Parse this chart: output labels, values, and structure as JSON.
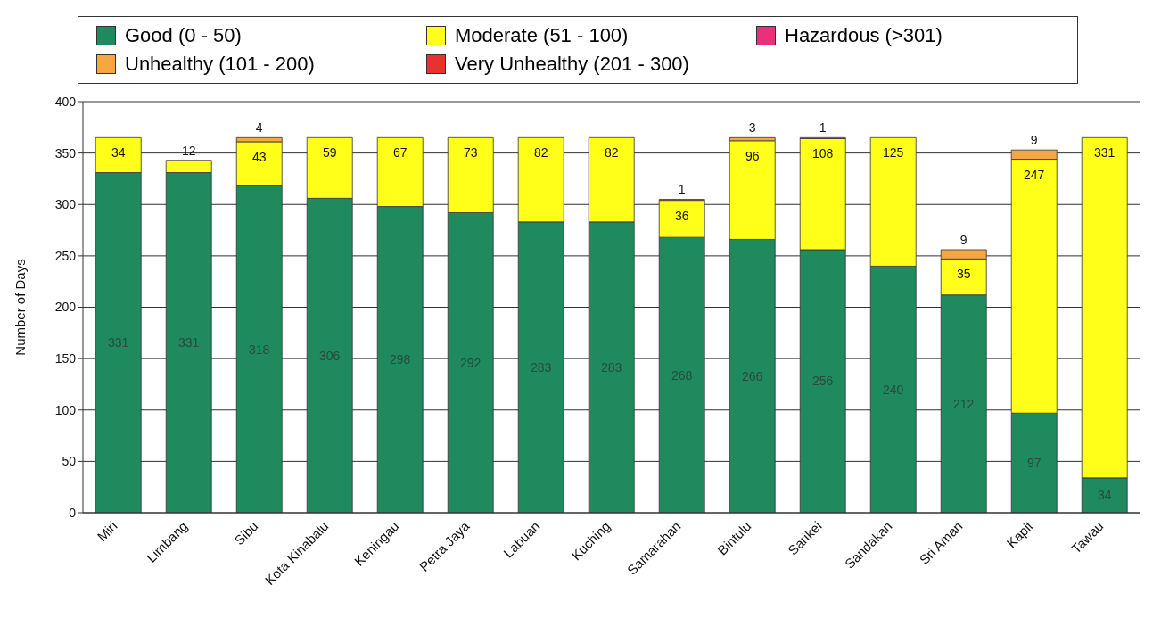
{
  "chart_data": {
    "type": "bar",
    "stacked": true,
    "ylabel": "Number of Days",
    "categories": [
      "Miri",
      "Limbang",
      "Sibu",
      "Kota Kinabalu",
      "Keningau",
      "Petra Jaya",
      "Labuan",
      "Kuching",
      "Samarahan",
      "Bintulu",
      "Sarikei",
      "Sandakan",
      "Sri Aman",
      "Kapit",
      "Tawau"
    ],
    "series": [
      {
        "name": "Good (0 - 50)",
        "color": "#1e8a5e",
        "values": [
          331,
          331,
          318,
          306,
          298,
          292,
          283,
          283,
          268,
          266,
          256,
          240,
          212,
          97,
          34
        ]
      },
      {
        "name": "Moderate (51 - 100)",
        "color": "#ffff1a",
        "values": [
          34,
          12,
          43,
          59,
          67,
          73,
          82,
          82,
          36,
          96,
          108,
          125,
          35,
          247,
          331
        ]
      },
      {
        "name": "Hazardous (>301)",
        "color": "#e8317a",
        "values": [
          null,
          null,
          null,
          null,
          null,
          null,
          null,
          null,
          null,
          null,
          null,
          null,
          null,
          null,
          null
        ]
      },
      {
        "name": "Unhealthy (101 - 200)",
        "color": "#f5a742",
        "values": [
          null,
          null,
          4,
          null,
          null,
          null,
          null,
          null,
          1,
          3,
          1,
          null,
          9,
          9,
          null
        ]
      },
      {
        "name": "Very Unhealthy (201 - 300)",
        "color": "#e8322e",
        "values": [
          null,
          null,
          null,
          null,
          null,
          null,
          null,
          null,
          null,
          null,
          null,
          null,
          null,
          null,
          null
        ]
      }
    ],
    "ylim": [
      0,
      400
    ],
    "yticks": [
      0,
      50,
      100,
      150,
      200,
      250,
      300,
      350,
      400
    ],
    "grid": "y",
    "legend": "top",
    "data_labels": true
  }
}
